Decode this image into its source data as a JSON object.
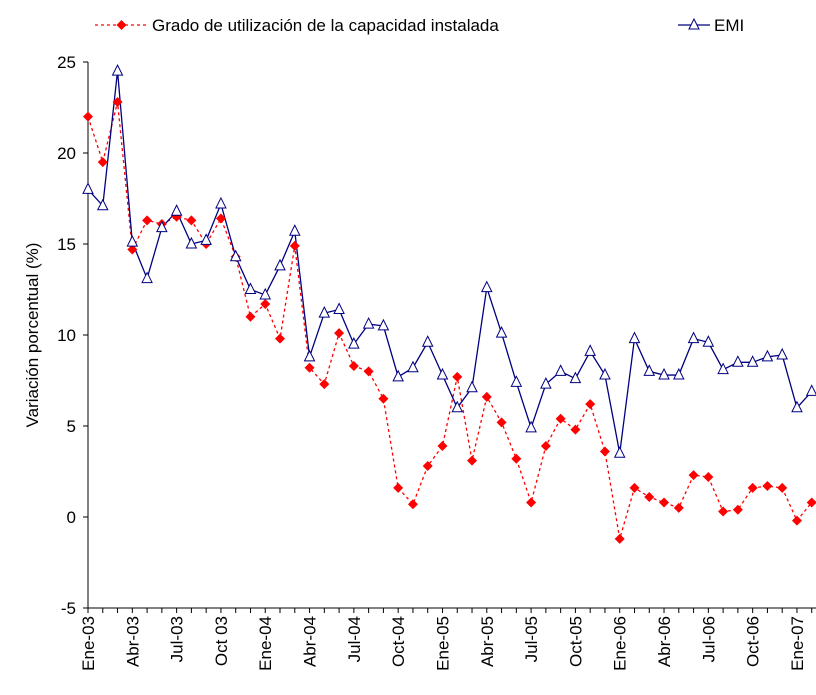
{
  "chart_data": {
    "type": "line",
    "y_label": "Variación porcentual (%)",
    "categories": [
      "Ene-03",
      null,
      null,
      "Abr-03",
      null,
      null,
      "Jul-03",
      null,
      null,
      "Oct 03",
      null,
      null,
      "Ene-04",
      null,
      null,
      "Abr-04",
      null,
      null,
      "Jul-04",
      null,
      null,
      "Oct-04",
      null,
      null,
      "Ene-05",
      null,
      null,
      "Abr-05",
      null,
      null,
      "Jul-05",
      null,
      null,
      "Oct-05",
      null,
      null,
      "Ene-06",
      null,
      null,
      "Abr-06",
      null,
      null,
      "Jul-06",
      null,
      null,
      "Oct-06",
      null,
      null,
      "Ene-07",
      null
    ],
    "series": [
      {
        "name": "Grado de utilización de la capacidad instalada",
        "color": "#ff0000",
        "marker": "diamond",
        "dash": "dotted",
        "values": [
          22,
          19.5,
          22.8,
          14.7,
          16.3,
          16.1,
          16.5,
          16.3,
          15.0,
          16.4,
          14.3,
          11.0,
          11.7,
          9.8,
          14.9,
          8.2,
          7.3,
          10.1,
          8.3,
          8.0,
          6.5,
          1.6,
          0.7,
          2.8,
          3.9,
          7.7,
          3.1,
          6.6,
          5.2,
          3.2,
          0.8,
          3.9,
          5.4,
          4.8,
          6.2,
          3.6,
          -1.2,
          1.6,
          1.1,
          0.8,
          0.5,
          2.3,
          2.2,
          0.3,
          0.4,
          1.6,
          1.7,
          1.6,
          -0.2,
          0.8
        ]
      },
      {
        "name": "EMI",
        "color": "#000080",
        "marker": "triangle",
        "dash": "solid",
        "values": [
          18,
          17.1,
          24.5,
          15.1,
          13.1,
          15.9,
          16.8,
          15.0,
          15.2,
          17.2,
          14.3,
          12.5,
          12.2,
          13.8,
          15.7,
          8.8,
          11.2,
          11.4,
          9.5,
          10.6,
          10.5,
          7.7,
          8.2,
          9.6,
          7.8,
          6.0,
          7.1,
          12.6,
          10.1,
          7.4,
          4.9,
          7.3,
          8.0,
          7.6,
          9.1,
          7.8,
          3.5,
          9.8,
          8.0,
          7.8,
          7.8,
          9.8,
          9.6,
          8.1,
          8.5,
          8.5,
          8.8,
          8.9,
          6.0,
          6.9
        ]
      }
    ],
    "ylim": [
      -5,
      25
    ],
    "yticks": [
      -5,
      0,
      5,
      10,
      15,
      20,
      25
    ],
    "grid": false
  }
}
